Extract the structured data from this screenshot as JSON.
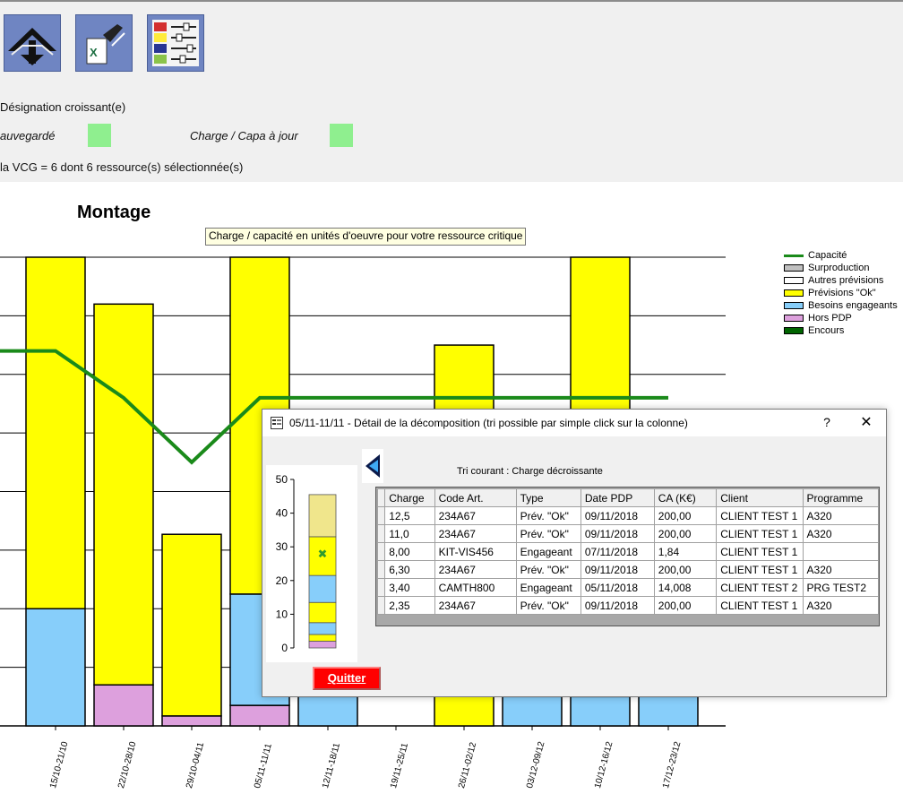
{
  "toolbar": {
    "buttons": [
      {
        "name": "import-icon"
      },
      {
        "name": "excel-export-icon"
      },
      {
        "name": "settings-sliders-icon"
      }
    ]
  },
  "info": {
    "sort_text": "Désignation croissant(e)",
    "saved_label": "auvegardé",
    "charge_capa_label": "Charge / Capa à jour",
    "vcg_text": "la VCG = 6 dont 6 ressource(s) sélectionnée(s)",
    "indicator_color": "#8fef8f"
  },
  "chart": {
    "title": "Montage",
    "subtitle": "Charge / capacité en unités d'oeuvre pour votre ressource critique"
  },
  "legend": [
    {
      "label": "Capacité",
      "color": "#1a8a1a",
      "kind": "line"
    },
    {
      "label": "Surproduction",
      "color": "#c0c0c0",
      "kind": "box"
    },
    {
      "label": "Autres prévisions",
      "color": "#ffffff",
      "kind": "box"
    },
    {
      "label": "Prévisions \"Ok\"",
      "color": "#ffff00",
      "kind": "box"
    },
    {
      "label": "Besoins engageants",
      "color": "#87cefa",
      "kind": "box"
    },
    {
      "label": "Hors PDP",
      "color": "#dda0dd",
      "kind": "box"
    },
    {
      "label": "Encours",
      "color": "#006400",
      "kind": "box"
    }
  ],
  "chart_data": {
    "type": "bar",
    "stacked": true,
    "categories": [
      "15/10-21/10",
      "22/10-28/10",
      "29/10-04/11",
      "05/11-11/11",
      "12/11-18/11",
      "19/11-25/11",
      "26/11-02/12",
      "03/12-09/12",
      "10/12-16/12",
      "17/12-23/12"
    ],
    "ylim": [
      0,
      80
    ],
    "series": [
      {
        "name": "Hors PDP",
        "color": "#dda0dd",
        "values": [
          0,
          7,
          1.7,
          3.5,
          0,
          0,
          0,
          0,
          0,
          0
        ]
      },
      {
        "name": "Besoins engageants",
        "color": "#87cefa",
        "values": [
          20,
          0,
          0,
          19,
          5,
          0,
          0,
          5,
          5,
          5
        ]
      },
      {
        "name": "Prévisions \"Ok\"",
        "color": "#ffff00",
        "values": [
          60,
          65,
          31,
          57.5,
          0,
          0,
          65,
          0,
          75,
          0
        ]
      },
      {
        "name": "Capacité",
        "color": "#1a8a1a",
        "type": "line",
        "values": [
          64,
          56,
          45,
          56,
          56,
          56,
          56,
          56,
          56,
          56
        ]
      }
    ]
  },
  "dialog": {
    "title": "05/11-11/11 - Détail de la décomposition (tri possible par simple click sur la colonne)",
    "help": "?",
    "close": "✕",
    "sort_label": "Tri courant : Charge décroissante",
    "quit_label": "Quitter",
    "columns": [
      "Charge",
      "Code Art.",
      "Type",
      "Date PDP",
      "CA (K€)",
      "Client",
      "Programme"
    ],
    "rows": [
      [
        "12,5",
        "234A67",
        "Prév. \"Ok\"",
        "09/11/2018",
        "200,00",
        "CLIENT TEST 1",
        "A320"
      ],
      [
        "11,0",
        "234A67",
        "Prév. \"Ok\"",
        "09/11/2018",
        "200,00",
        "CLIENT TEST 1",
        "A320"
      ],
      [
        "8,00",
        "KIT-VIS456",
        "Engageant",
        "07/11/2018",
        "1,84",
        "CLIENT TEST 1",
        ""
      ],
      [
        "6,30",
        "234A67",
        "Prév. \"Ok\"",
        "09/11/2018",
        "200,00",
        "CLIENT TEST 1",
        "A320"
      ],
      [
        "3,40",
        "CAMTH800",
        "Engageant",
        "05/11/2018",
        "14,008",
        "CLIENT TEST 2",
        "PRG TEST2"
      ],
      [
        "2,35",
        "234A67",
        "Prév. \"Ok\"",
        "09/11/2018",
        "200,00",
        "CLIENT TEST 1",
        "A320"
      ]
    ],
    "mini_chart": {
      "ticks": [
        "50",
        "40",
        "30",
        "20",
        "10",
        "0"
      ],
      "segments": [
        {
          "value": 2,
          "color": "#dda0dd"
        },
        {
          "value": 2,
          "color": "#ffff00"
        },
        {
          "value": 3.5,
          "color": "#87cefa"
        },
        {
          "value": 6,
          "color": "#ffff00"
        },
        {
          "value": 8,
          "color": "#87cefa"
        },
        {
          "value": 11.5,
          "color": "#ffff00"
        },
        {
          "value": 12.5,
          "color": "#f0e68c"
        }
      ],
      "marker_value": 28,
      "ymax": 50
    }
  }
}
